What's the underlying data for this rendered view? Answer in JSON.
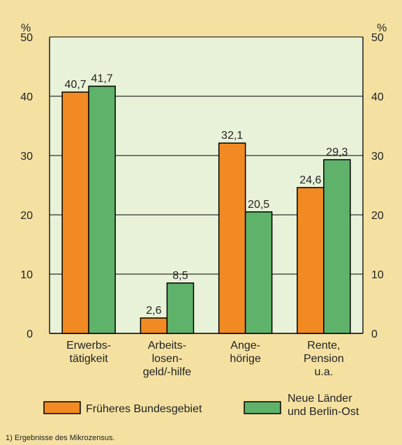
{
  "chart_data": {
    "type": "bar",
    "categories": [
      [
        "Erwerbs-",
        "tätigkeit"
      ],
      [
        "Arbeits-",
        "losen-",
        "geld/-hilfe"
      ],
      [
        "Ange-",
        "hörige"
      ],
      [
        "Rente,",
        "Pension",
        "u.a."
      ]
    ],
    "series": [
      {
        "name": "Früheres Bundesgebiet",
        "values": [
          40.7,
          2.6,
          32.1,
          24.6
        ],
        "labels": [
          "40,7",
          "2,6",
          "32,1",
          "24,6"
        ],
        "color": "#f18a22"
      },
      {
        "name": [
          "Neue Länder",
          "und Berlin-Ost"
        ],
        "values": [
          41.7,
          8.5,
          20.5,
          29.3
        ],
        "labels": [
          "41,7",
          "8,5",
          "20,5",
          "29,3"
        ],
        "color": "#5fb26a"
      }
    ],
    "ylim": [
      0,
      50
    ],
    "yticks": [
      0,
      10,
      20,
      30,
      40,
      50
    ],
    "y_unit_left": "%",
    "y_unit_right": "%",
    "grid": true,
    "background_color": "#e8f2d8",
    "footnote": "1) Ergebnisse des Mikrozensus."
  }
}
